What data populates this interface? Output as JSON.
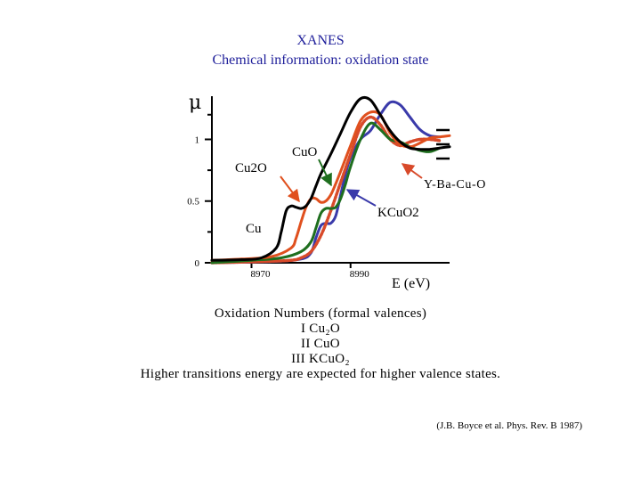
{
  "header": {
    "title": "XANES",
    "subtitle": "Chemical information: oxidation state"
  },
  "chart_data": {
    "type": "line",
    "ylabel": "μ",
    "xlabel": "E (eV)",
    "xlim": [
      8962,
      9010
    ],
    "ylim": [
      0,
      1.35
    ],
    "x_ticks": [
      8970,
      8990
    ],
    "y_ticks": [
      0,
      0.5,
      1
    ],
    "grid": false,
    "annotations": [
      {
        "text": "Cu2O",
        "points_to": "Cu2O"
      },
      {
        "text": "CuO",
        "points_to": "CuO"
      },
      {
        "text": "Y-Ba-Cu-O",
        "points_to": "Y-Ba-Cu-O"
      },
      {
        "text": "KCuO2",
        "points_to": "KCuO2"
      },
      {
        "text": "Cu",
        "points_to": "Cu"
      }
    ],
    "series": [
      {
        "name": "Cu",
        "color": "#000000",
        "x": [
          8962,
          8968,
          8972,
          8975,
          8976,
          8977,
          8978,
          8979,
          8980,
          8981,
          8982,
          8983,
          8984,
          8986,
          8988,
          8990,
          8992,
          8994,
          8996,
          8998,
          9000,
          9002,
          9004,
          9006,
          9008,
          9010
        ],
        "y": [
          0.02,
          0.025,
          0.04,
          0.12,
          0.25,
          0.42,
          0.46,
          0.45,
          0.44,
          0.46,
          0.52,
          0.62,
          0.72,
          0.88,
          1.05,
          1.22,
          1.33,
          1.32,
          1.2,
          1.07,
          0.98,
          0.93,
          0.92,
          0.92,
          0.93,
          0.94
        ]
      },
      {
        "name": "Cu2O",
        "color": "#e0501e",
        "x": [
          8962,
          8968,
          8974,
          8978,
          8979,
          8980,
          8981,
          8982,
          8983,
          8984,
          8985,
          8986,
          8987,
          8988,
          8990,
          8992,
          8994,
          8996,
          8998,
          9000,
          9002,
          9004,
          9006,
          9008,
          9010
        ],
        "y": [
          0.02,
          0.03,
          0.05,
          0.12,
          0.2,
          0.33,
          0.45,
          0.52,
          0.52,
          0.49,
          0.5,
          0.55,
          0.64,
          0.74,
          0.95,
          1.15,
          1.22,
          1.2,
          1.05,
          0.96,
          0.94,
          0.97,
          1.01,
          1.02,
          1.03
        ]
      },
      {
        "name": "CuO",
        "color": "#1e6e1e",
        "x": [
          8962,
          8970,
          8976,
          8980,
          8982,
          8983,
          8984,
          8985,
          8986,
          8987,
          8988,
          8989,
          8990,
          8992,
          8994,
          8996,
          8998,
          9000,
          9002,
          9004,
          9006,
          9008
        ],
        "y": [
          0.0,
          0.02,
          0.04,
          0.09,
          0.17,
          0.28,
          0.4,
          0.44,
          0.44,
          0.45,
          0.52,
          0.64,
          0.78,
          1.0,
          1.13,
          1.08,
          1.0,
          0.98,
          0.94,
          0.91,
          0.9,
          0.93
        ]
      },
      {
        "name": "Y-Ba-Cu-O",
        "color": "#d84a2a",
        "x": [
          8962,
          8972,
          8978,
          8980,
          8982,
          8984,
          8986,
          8988,
          8990,
          8992,
          8994,
          8996,
          8998,
          9000,
          9002,
          9004,
          9006,
          9008
        ],
        "y": [
          0.0,
          0.01,
          0.02,
          0.04,
          0.09,
          0.22,
          0.42,
          0.65,
          0.88,
          1.1,
          1.18,
          1.12,
          1.0,
          0.95,
          0.98,
          1.0,
          1.0,
          0.99
        ]
      },
      {
        "name": "KCuO2",
        "color": "#3a3aaa",
        "x": [
          8962,
          8974,
          8980,
          8982,
          8983,
          8984,
          8985,
          8986,
          8987,
          8988,
          8989,
          8990,
          8992,
          8994,
          8996,
          8998,
          9000,
          9002,
          9004,
          9006,
          9008
        ],
        "y": [
          0.0,
          0.01,
          0.03,
          0.08,
          0.2,
          0.3,
          0.32,
          0.32,
          0.38,
          0.55,
          0.72,
          0.85,
          1.0,
          1.07,
          1.2,
          1.3,
          1.28,
          1.18,
          1.08,
          1.03,
          1.02
        ]
      }
    ]
  },
  "notes": {
    "line1": "Oxidation Numbers (formal valences)",
    "line2": "I   Cu₂O",
    "line3": "II   CuO",
    "line4": "III    KCuO₂",
    "line5": "Higher transitions energy are expected for higher valence states."
  },
  "citation": "(J.B. Boyce et al. Phys. Rev. B 1987)"
}
